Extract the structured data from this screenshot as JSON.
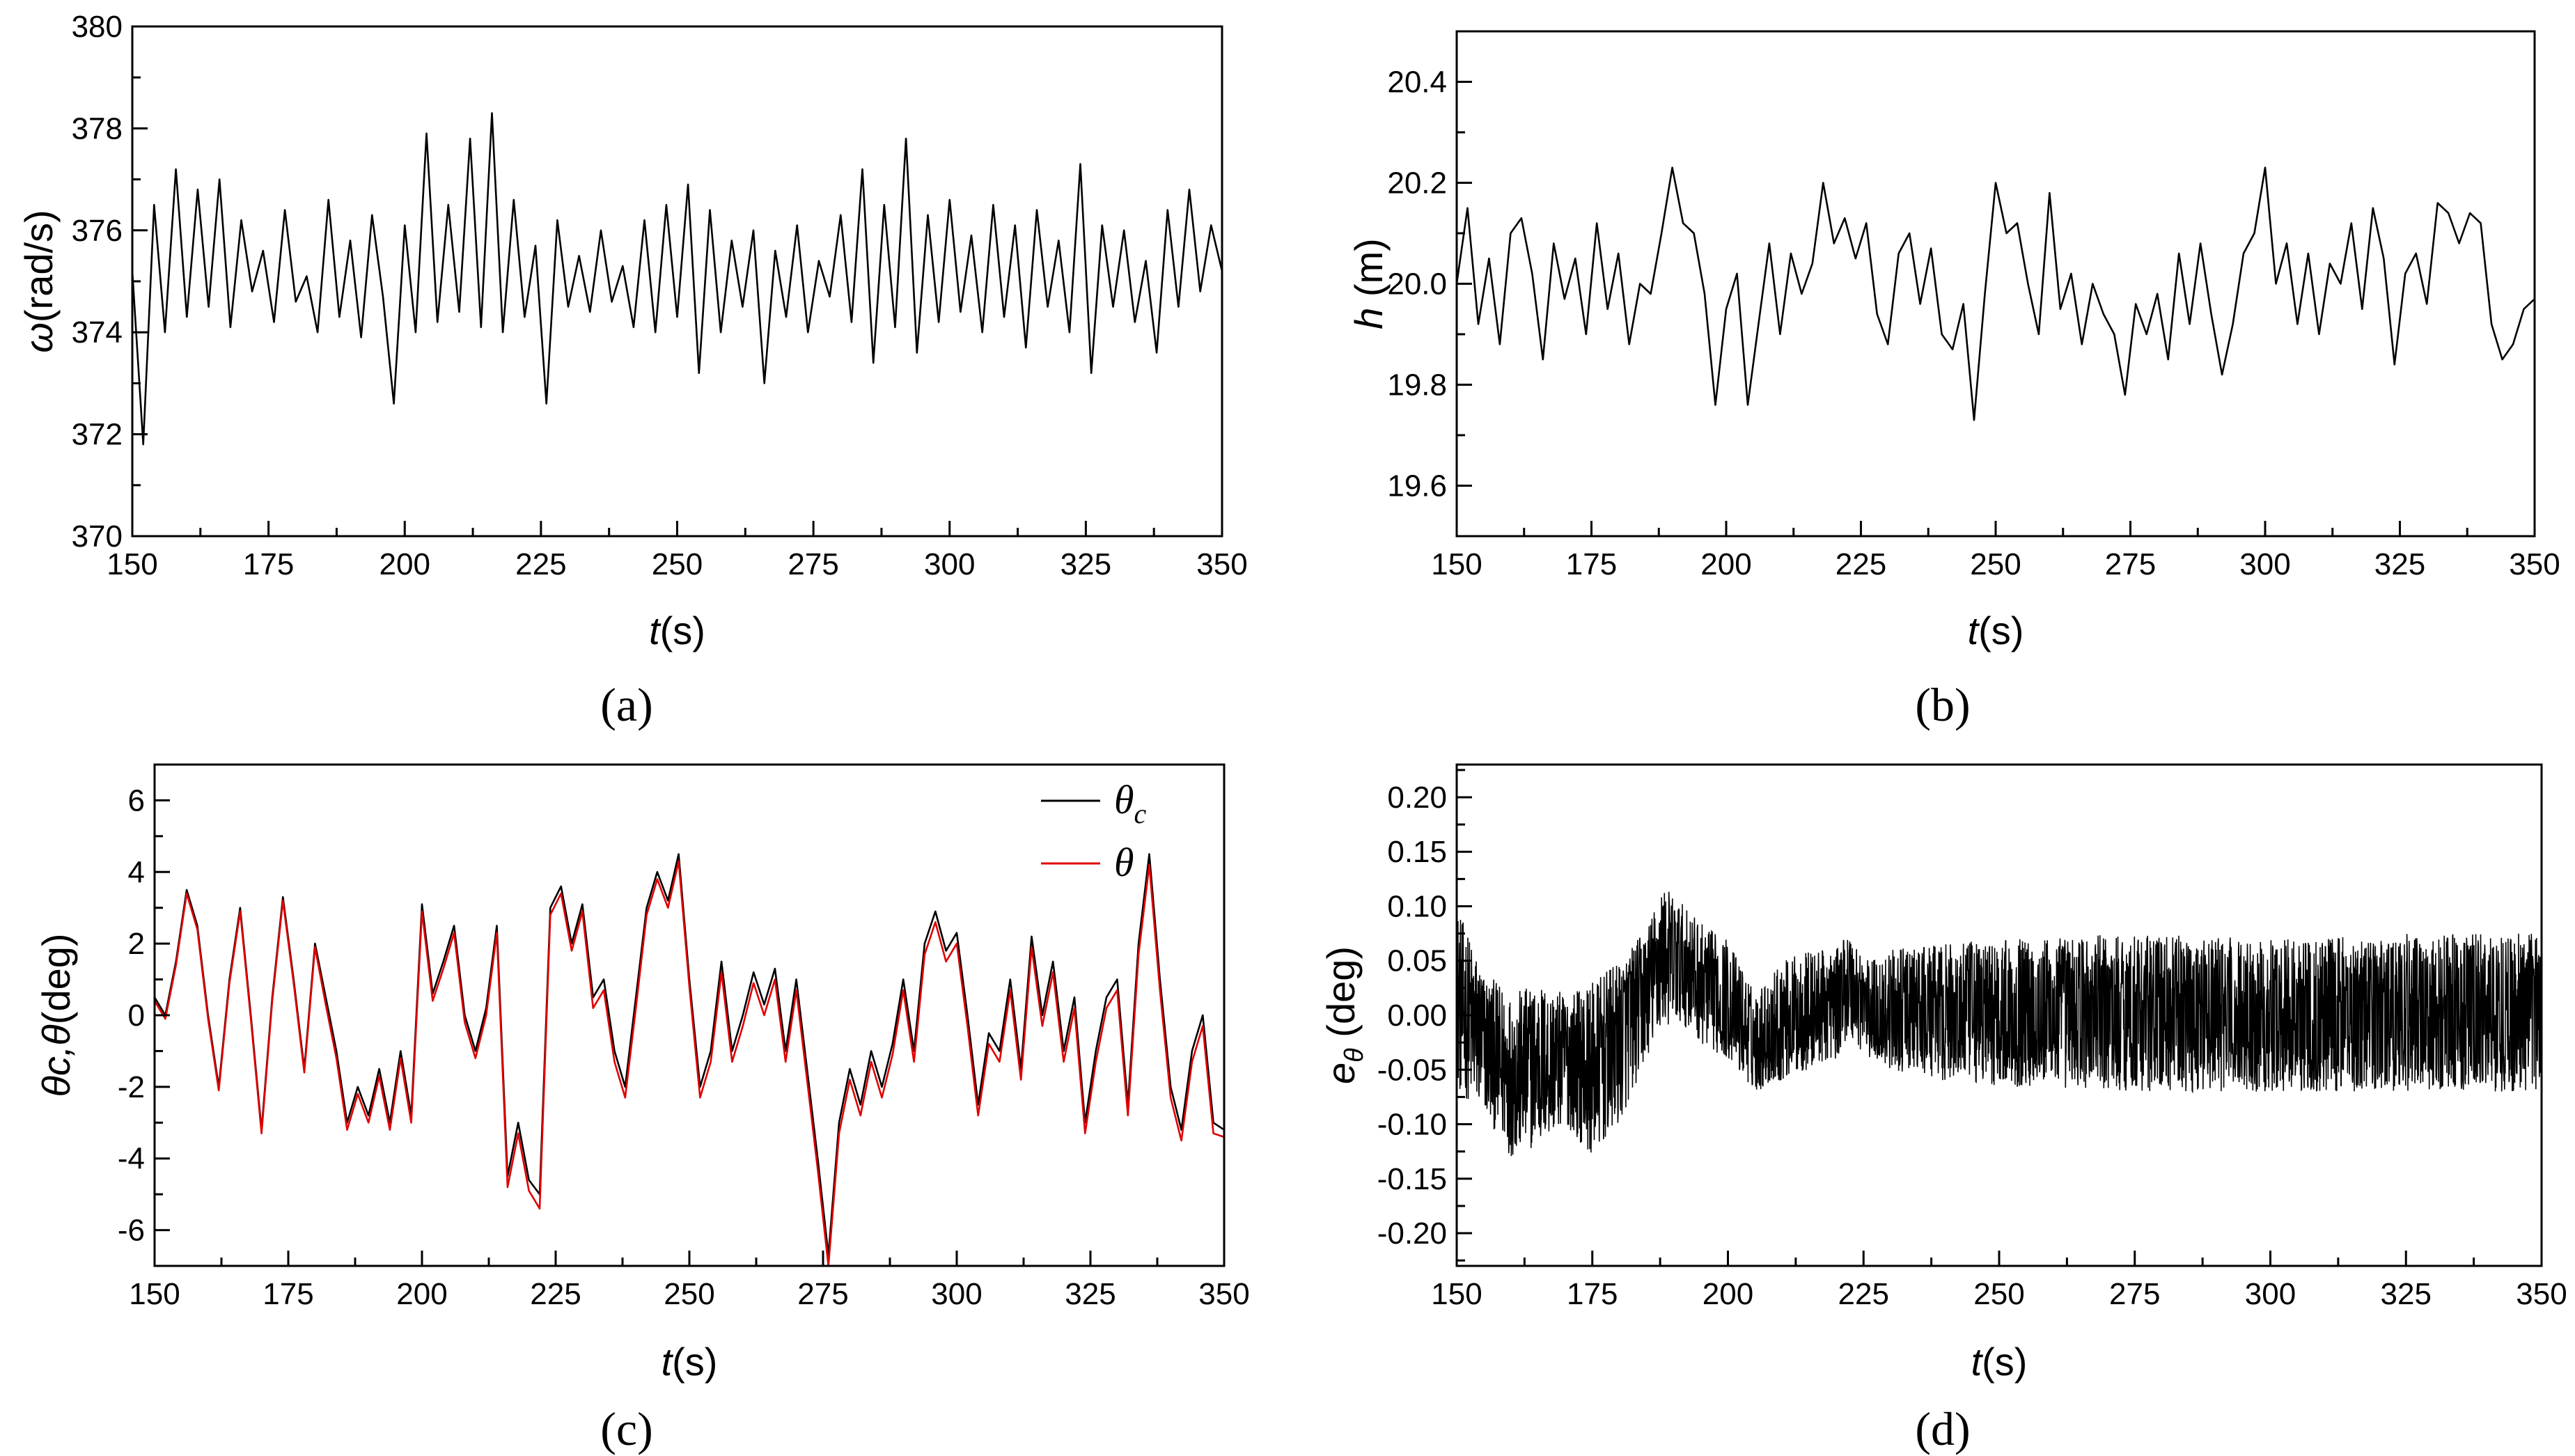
{
  "chart_data": [
    {
      "type": "line",
      "panel_label": "(a)",
      "xlabel": {
        "var": "t",
        "unit": "(s)"
      },
      "ylabel": {
        "var": "ω",
        "unit": "(rad/s)"
      },
      "xlim": [
        150,
        350
      ],
      "ylim": [
        370,
        380
      ],
      "xticks": [
        150,
        175,
        200,
        225,
        250,
        275,
        300,
        325,
        350
      ],
      "yticks": [
        370,
        372,
        374,
        376,
        378,
        380
      ],
      "ytick_labels": [
        "370",
        "372",
        "374",
        "376",
        "378",
        "380"
      ],
      "series": [
        {
          "color": "#000000",
          "x": [
            150,
            152,
            154,
            156,
            158,
            160,
            162,
            164,
            166,
            168,
            170,
            172,
            174,
            176,
            178,
            180,
            182,
            184,
            186,
            188,
            190,
            192,
            194,
            196,
            198,
            200,
            202,
            204,
            206,
            208,
            210,
            212,
            214,
            216,
            218,
            220,
            222,
            224,
            226,
            228,
            230,
            232,
            234,
            236,
            238,
            240,
            242,
            244,
            246,
            248,
            250,
            252,
            254,
            256,
            258,
            260,
            262,
            264,
            266,
            268,
            270,
            272,
            274,
            276,
            278,
            280,
            282,
            284,
            286,
            288,
            290,
            292,
            294,
            296,
            298,
            300,
            302,
            304,
            306,
            308,
            310,
            312,
            314,
            316,
            318,
            320,
            322,
            324,
            326,
            328,
            330,
            332,
            334,
            336,
            338,
            340,
            342,
            344,
            346,
            348,
            350
          ],
          "y": [
            375.2,
            371.8,
            376.5,
            374.0,
            377.2,
            374.3,
            376.8,
            374.5,
            377.0,
            374.1,
            376.2,
            374.8,
            375.6,
            374.2,
            376.4,
            374.6,
            375.1,
            374.0,
            376.6,
            374.3,
            375.8,
            373.9,
            376.3,
            374.7,
            372.6,
            376.1,
            374.0,
            377.9,
            374.2,
            376.5,
            374.4,
            377.8,
            374.1,
            378.3,
            374.0,
            376.6,
            374.3,
            375.7,
            372.6,
            376.2,
            374.5,
            375.5,
            374.4,
            376.0,
            374.6,
            375.3,
            374.1,
            376.2,
            374.0,
            376.5,
            374.3,
            376.9,
            373.2,
            376.4,
            374.0,
            375.8,
            374.5,
            376.0,
            373.0,
            375.6,
            374.3,
            376.1,
            374.0,
            375.4,
            374.7,
            376.3,
            374.2,
            377.2,
            373.4,
            376.5,
            374.1,
            377.8,
            373.6,
            376.3,
            374.2,
            376.6,
            374.4,
            375.9,
            374.0,
            376.5,
            374.3,
            376.1,
            373.7,
            376.4,
            374.5,
            375.8,
            374.0,
            377.3,
            373.2,
            376.1,
            374.5,
            376.0,
            374.2,
            375.4,
            373.6,
            376.4,
            374.5,
            376.8,
            374.8,
            376.1,
            375.2
          ]
        }
      ]
    },
    {
      "type": "line",
      "panel_label": "(b)",
      "xlabel": {
        "var": "t",
        "unit": "(s)"
      },
      "ylabel": {
        "var": "h",
        "unit": " (m)"
      },
      "xlim": [
        150,
        350
      ],
      "ylim": [
        19.5,
        20.5
      ],
      "xticks": [
        150,
        175,
        200,
        225,
        250,
        275,
        300,
        325,
        350
      ],
      "yticks": [
        19.6,
        19.8,
        20.0,
        20.2,
        20.4
      ],
      "ytick_labels": [
        "19.6",
        "19.8",
        "20.0",
        "20.2",
        "20.4"
      ],
      "series": [
        {
          "color": "#000000",
          "x": [
            150,
            152,
            154,
            156,
            158,
            160,
            162,
            164,
            166,
            168,
            170,
            172,
            174,
            176,
            178,
            180,
            182,
            184,
            186,
            188,
            190,
            192,
            194,
            196,
            198,
            200,
            202,
            204,
            206,
            208,
            210,
            212,
            214,
            216,
            218,
            220,
            222,
            224,
            226,
            228,
            230,
            232,
            234,
            236,
            238,
            240,
            242,
            244,
            246,
            248,
            250,
            252,
            254,
            256,
            258,
            260,
            262,
            264,
            266,
            268,
            270,
            272,
            274,
            276,
            278,
            280,
            282,
            284,
            286,
            288,
            290,
            292,
            294,
            296,
            298,
            300,
            302,
            304,
            306,
            308,
            310,
            312,
            314,
            316,
            318,
            320,
            322,
            324,
            326,
            328,
            330,
            332,
            334,
            336,
            338,
            340,
            342,
            344,
            346,
            348,
            350
          ],
          "y": [
            20.0,
            20.15,
            19.92,
            20.05,
            19.88,
            20.1,
            20.13,
            20.02,
            19.85,
            20.08,
            19.97,
            20.05,
            19.9,
            20.12,
            19.95,
            20.06,
            19.88,
            20.0,
            19.98,
            20.1,
            20.23,
            20.12,
            20.1,
            19.98,
            19.76,
            19.95,
            20.02,
            19.76,
            19.92,
            20.08,
            19.9,
            20.06,
            19.98,
            20.04,
            20.2,
            20.08,
            20.13,
            20.05,
            20.12,
            19.94,
            19.88,
            20.06,
            20.1,
            19.96,
            20.07,
            19.9,
            19.87,
            19.96,
            19.73,
            19.98,
            20.2,
            20.1,
            20.12,
            20.0,
            19.9,
            20.18,
            19.95,
            20.02,
            19.88,
            20.0,
            19.94,
            19.9,
            19.78,
            19.96,
            19.9,
            19.98,
            19.85,
            20.06,
            19.92,
            20.08,
            19.94,
            19.82,
            19.92,
            20.06,
            20.1,
            20.23,
            20.0,
            20.08,
            19.92,
            20.06,
            19.9,
            20.04,
            20.0,
            20.12,
            19.95,
            20.15,
            20.05,
            19.84,
            20.02,
            20.06,
            19.96,
            20.16,
            20.14,
            20.08,
            20.14,
            20.12,
            19.92,
            19.85,
            19.88,
            19.95,
            19.97
          ]
        }
      ]
    },
    {
      "type": "line",
      "panel_label": "(c)",
      "xlabel": {
        "var": "t",
        "unit": "(s)"
      },
      "ylabel": {
        "var": "θc,θ",
        "unit": "(deg)"
      },
      "xlim": [
        150,
        350
      ],
      "ylim": [
        -7,
        7
      ],
      "xticks": [
        150,
        175,
        200,
        225,
        250,
        275,
        300,
        325,
        350
      ],
      "yticks": [
        -6,
        -4,
        -2,
        0,
        2,
        4,
        6
      ],
      "ytick_labels": [
        "-6",
        "-4",
        "-2",
        "0",
        "2",
        "4",
        "6"
      ],
      "legend": {
        "position": "top-right"
      },
      "series": [
        {
          "name": "θc",
          "name_base": "θ",
          "name_sub": "c",
          "color": "#000000",
          "x": [
            150,
            152,
            154,
            156,
            158,
            160,
            162,
            164,
            166,
            168,
            170,
            172,
            174,
            176,
            178,
            180,
            182,
            184,
            186,
            188,
            190,
            192,
            194,
            196,
            198,
            200,
            202,
            204,
            206,
            208,
            210,
            212,
            214,
            216,
            218,
            220,
            222,
            224,
            226,
            228,
            230,
            232,
            234,
            236,
            238,
            240,
            242,
            244,
            246,
            248,
            250,
            252,
            254,
            256,
            258,
            260,
            262,
            264,
            266,
            268,
            270,
            272,
            274,
            276,
            278,
            280,
            282,
            284,
            286,
            288,
            290,
            292,
            294,
            296,
            298,
            300,
            302,
            304,
            306,
            308,
            310,
            312,
            314,
            316,
            318,
            320,
            322,
            324,
            326,
            328,
            330,
            332,
            334,
            336,
            338,
            340,
            342,
            344,
            346,
            348,
            350
          ],
          "y": [
            0.5,
            0.0,
            1.5,
            3.5,
            2.5,
            0.0,
            -2.0,
            1.0,
            3.0,
            0.0,
            -3.2,
            0.5,
            3.3,
            1.0,
            -1.5,
            2.0,
            0.5,
            -1.0,
            -3.0,
            -2.0,
            -2.8,
            -1.5,
            -3.0,
            -1.0,
            -2.8,
            3.1,
            0.6,
            1.5,
            2.5,
            0.0,
            -1.0,
            0.2,
            2.5,
            -4.5,
            -3.0,
            -4.6,
            -5.0,
            3.0,
            3.6,
            2.0,
            3.1,
            0.5,
            1.0,
            -1.0,
            -2.0,
            0.5,
            3.0,
            4.0,
            3.2,
            4.5,
            1.0,
            -2.0,
            -1.0,
            1.5,
            -1.0,
            0.0,
            1.2,
            0.3,
            1.3,
            -1.0,
            1.0,
            -1.5,
            -4.0,
            -6.7,
            -3.0,
            -1.5,
            -2.5,
            -1.0,
            -2.0,
            -0.8,
            1.0,
            -1.0,
            2.0,
            2.9,
            1.8,
            2.3,
            0.0,
            -2.5,
            -0.5,
            -1.0,
            1.0,
            -1.5,
            2.2,
            0.0,
            1.5,
            -1.0,
            0.5,
            -3.0,
            -1.0,
            0.5,
            1.0,
            -2.5,
            2.0,
            4.5,
            1.0,
            -2.0,
            -3.2,
            -1.0,
            0.0,
            -3.0,
            -3.2
          ]
        },
        {
          "name": "θ",
          "color": "#e00000",
          "x": [
            150,
            152,
            154,
            156,
            158,
            160,
            162,
            164,
            166,
            168,
            170,
            172,
            174,
            176,
            178,
            180,
            182,
            184,
            186,
            188,
            190,
            192,
            194,
            196,
            198,
            200,
            202,
            204,
            206,
            208,
            210,
            212,
            214,
            216,
            218,
            220,
            222,
            224,
            226,
            228,
            230,
            232,
            234,
            236,
            238,
            240,
            242,
            244,
            246,
            248,
            250,
            252,
            254,
            256,
            258,
            260,
            262,
            264,
            266,
            268,
            270,
            272,
            274,
            276,
            278,
            280,
            282,
            284,
            286,
            288,
            290,
            292,
            294,
            296,
            298,
            300,
            302,
            304,
            306,
            308,
            310,
            312,
            314,
            316,
            318,
            320,
            322,
            324,
            326,
            328,
            330,
            332,
            334,
            336,
            338,
            340,
            342,
            344,
            346,
            348,
            350
          ],
          "y": [
            0.4,
            -0.1,
            1.4,
            3.4,
            2.4,
            -0.1,
            -2.1,
            0.9,
            2.9,
            -0.1,
            -3.3,
            0.4,
            3.2,
            0.9,
            -1.6,
            1.9,
            0.3,
            -1.2,
            -3.2,
            -2.2,
            -3.0,
            -1.7,
            -3.2,
            -1.2,
            -3.0,
            2.9,
            0.4,
            1.3,
            2.3,
            -0.2,
            -1.2,
            0.0,
            2.3,
            -4.8,
            -3.3,
            -4.9,
            -5.4,
            2.8,
            3.4,
            1.8,
            2.9,
            0.2,
            0.7,
            -1.3,
            -2.3,
            0.2,
            2.8,
            3.8,
            3.0,
            4.3,
            0.8,
            -2.3,
            -1.3,
            1.2,
            -1.3,
            -0.3,
            0.9,
            0.0,
            1.0,
            -1.3,
            0.7,
            -1.8,
            -4.3,
            -7.0,
            -3.3,
            -1.8,
            -2.8,
            -1.3,
            -2.3,
            -1.1,
            0.7,
            -1.3,
            1.7,
            2.6,
            1.5,
            2.0,
            -0.3,
            -2.8,
            -0.8,
            -1.3,
            0.7,
            -1.8,
            1.9,
            -0.3,
            1.2,
            -1.3,
            0.2,
            -3.3,
            -1.3,
            0.2,
            0.7,
            -2.8,
            1.7,
            4.2,
            0.7,
            -2.3,
            -3.5,
            -1.3,
            -0.3,
            -3.3,
            -3.4
          ]
        }
      ]
    },
    {
      "type": "line",
      "panel_label": "(d)",
      "xlabel": {
        "var": "t",
        "unit": "(s)"
      },
      "ylabel": {
        "var": "e",
        "sub": "θ",
        "unit": " (deg)"
      },
      "xlim": [
        150,
        350
      ],
      "ylim": [
        -0.23,
        0.23
      ],
      "xticks": [
        150,
        175,
        200,
        225,
        250,
        275,
        300,
        325,
        350
      ],
      "yticks": [
        -0.2,
        -0.15,
        -0.1,
        -0.05,
        0.0,
        0.05,
        0.1,
        0.15,
        0.2
      ],
      "ytick_labels": [
        "-0.20",
        "-0.15",
        "-0.10",
        "-0.05",
        "0.00",
        "0.05",
        "0.10",
        "0.15",
        "0.20"
      ],
      "series": [
        {
          "color": "#000000",
          "style": "dense-noise",
          "envelope_x": [
            150,
            155,
            160,
            165,
            170,
            175,
            180,
            185,
            188,
            192,
            196,
            200,
            205,
            210,
            215,
            220,
            222,
            226,
            230,
            240,
            250,
            275,
            300,
            325,
            350
          ],
          "envelope_upper": [
            0.1,
            0.04,
            0.02,
            0.03,
            0.02,
            0.03,
            0.05,
            0.08,
            0.12,
            0.1,
            0.08,
            0.07,
            0.02,
            0.05,
            0.06,
            0.06,
            0.08,
            0.05,
            0.06,
            0.065,
            0.07,
            0.075,
            0.07,
            0.075,
            0.075
          ],
          "envelope_lower": [
            -0.07,
            -0.09,
            -0.13,
            -0.12,
            -0.1,
            -0.13,
            -0.1,
            -0.04,
            -0.01,
            -0.01,
            -0.03,
            -0.04,
            -0.07,
            -0.06,
            -0.05,
            -0.04,
            -0.02,
            -0.04,
            -0.05,
            -0.06,
            -0.065,
            -0.07,
            -0.07,
            -0.07,
            -0.07
          ],
          "center_x": [
            150,
            160,
            170,
            180,
            188,
            195,
            205,
            215,
            222,
            230,
            350
          ],
          "center_y": [
            -0.01,
            -0.05,
            -0.04,
            -0.03,
            0.04,
            0.02,
            -0.01,
            0.0,
            0.02,
            0.0,
            0.0
          ]
        }
      ]
    }
  ]
}
